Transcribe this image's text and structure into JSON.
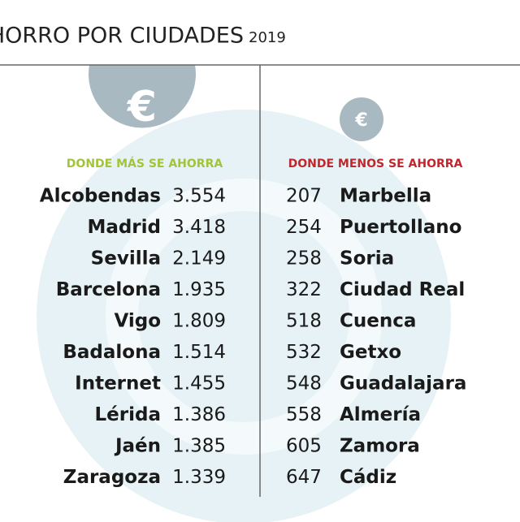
{
  "title": "AHORRO POR CIUDADES",
  "year": "2019",
  "left": {
    "heading": "DONDE MÁS SE AHORRA",
    "rows": [
      [
        "Alcobendas",
        "3.554"
      ],
      [
        "Madrid",
        "3.418"
      ],
      [
        "Sevilla",
        "2.149"
      ],
      [
        "Barcelona",
        "1.935"
      ],
      [
        "Vigo",
        "1.809"
      ],
      [
        "Badalona",
        "1.514"
      ],
      [
        "Internet",
        "1.455"
      ],
      [
        "Lérida",
        "1.386"
      ],
      [
        "Jaén",
        "1.385"
      ],
      [
        "Zaragoza",
        "1.339"
      ]
    ]
  },
  "right": {
    "heading": "DONDE MENOS SE AHORRA",
    "rows": [
      [
        "207",
        "Marbella"
      ],
      [
        "254",
        "Puertollano"
      ],
      [
        "258",
        "Soria"
      ],
      [
        "322",
        "Ciudad Real"
      ],
      [
        "518",
        "Cuenca"
      ],
      [
        "532",
        "Getxo"
      ],
      [
        "548",
        "Guadalajara"
      ],
      [
        "558",
        "Almería"
      ],
      [
        "605",
        "Zamora"
      ],
      [
        "647",
        "Cádiz"
      ]
    ]
  }
}
